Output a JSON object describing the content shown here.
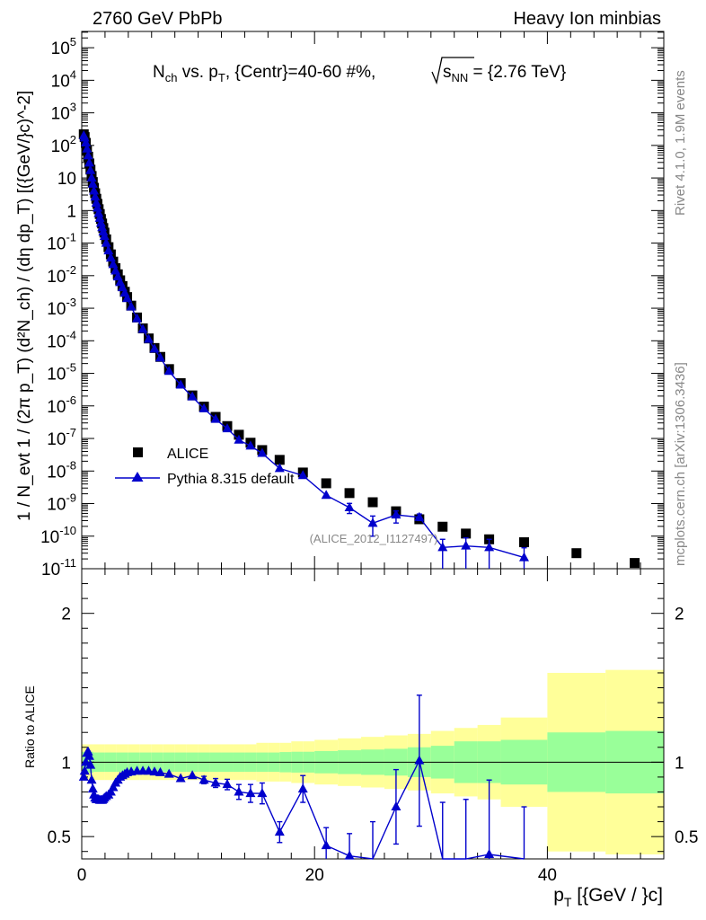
{
  "chart_data": {
    "type": "scatter",
    "header_left": "2760 GeV PbPb",
    "header_right": "Heavy Ion minbias",
    "title": "Nch vs. pT, {Centr}=40-60 #%, √sNN = {2.76 TeV}",
    "title_parts": {
      "n": "N",
      "ch": "ch",
      "vs": " vs. p",
      "t": "T",
      "centr": ", {Centr}=40-60 #%, ",
      "sqrt": "s",
      "nn": "NN",
      "energy": " = {2.76 TeV}"
    },
    "ylabel": "1 / Nevt 1 / (2π pT) (d²Nch) / (dη dpT) [({GeV/}c)^-2]",
    "ylabel_plain": "1 / N_evt  1 / (2π  p_T)  (d²N_ch) / (dη  dp_T)  [({GeV/}c)^-2]",
    "xlabel": "pT [{GeV / }c]",
    "xlabel_parts": {
      "p": "p",
      "t": "T",
      "unit": " [{GeV / }c]"
    },
    "ratio_ylabel": "Ratio to ALICE",
    "side_text_top": "Rivet 4.1.0,  1.9M events",
    "side_text_bottom": "mcplots.cern.ch [arXiv:1306.3436]",
    "watermark": "(ALICE_2012_I1127497)",
    "xlim": [
      0,
      50
    ],
    "ylim_log10": [
      -11,
      5.5
    ],
    "ratio_ylim": [
      0.35,
      2.3
    ],
    "y_tick_labels": [
      "10^5",
      "10^4",
      "10^3",
      "10^2",
      "10",
      "1",
      "10^-1",
      "10^-2",
      "10^-3",
      "10^-4",
      "10^-5",
      "10^-6",
      "10^-7",
      "10^-8",
      "10^-9",
      "10^-10",
      "10^-11"
    ],
    "x_tick_labels": [
      "0",
      "20",
      "40"
    ],
    "ratio_tick_labels": [
      "0.5",
      "1",
      "2"
    ],
    "legend": {
      "position": "middle-left",
      "entries": [
        "ALICE",
        "Pythia 8.315 default"
      ]
    },
    "series": [
      {
        "name": "ALICE",
        "color": "#000000",
        "marker": "square",
        "x": [
          0.175,
          0.25,
          0.35,
          0.45,
          0.55,
          0.65,
          0.75,
          0.85,
          0.95,
          1.05,
          1.15,
          1.25,
          1.35,
          1.45,
          1.55,
          1.65,
          1.75,
          1.85,
          1.95,
          2.1,
          2.3,
          2.5,
          2.7,
          2.9,
          3.1,
          3.3,
          3.5,
          3.7,
          3.9,
          4.25,
          4.75,
          5.25,
          5.75,
          6.25,
          6.75,
          7.5,
          8.5,
          9.5,
          10.5,
          11.5,
          12.5,
          13.5,
          14.5,
          15.5,
          17,
          19,
          21,
          23,
          25,
          27,
          29,
          31,
          33,
          35,
          38,
          42.5,
          47.5
        ],
        "y": [
          220,
          180,
          120,
          72,
          45,
          28,
          18,
          11.5,
          7.5,
          5,
          3.4,
          2.3,
          1.6,
          1.1,
          0.78,
          0.55,
          0.4,
          0.29,
          0.21,
          0.13,
          0.075,
          0.045,
          0.027,
          0.017,
          0.011,
          0.0072,
          0.0048,
          0.0032,
          0.0022,
          0.0012,
          0.00052,
          0.00024,
          0.000118,
          6e-05,
          3.2e-05,
          1.35e-05,
          5e-06,
          2.1e-06,
          9.5e-07,
          4.6e-07,
          2.4e-07,
          1.3e-07,
          7.4e-08,
          4.4e-08,
          2.2e-08,
          9e-09,
          4.2e-09,
          2.1e-09,
          1.1e-09,
          5.8e-10,
          3.3e-10,
          1.95e-10,
          1.2e-10,
          8e-11,
          6.5e-11,
          3e-11,
          1.5e-11
        ]
      },
      {
        "name": "Pythia 8.315 default",
        "color": "#0000cc",
        "marker": "triangle",
        "x": [
          0.175,
          0.25,
          0.35,
          0.45,
          0.55,
          0.65,
          0.75,
          0.85,
          0.95,
          1.05,
          1.15,
          1.25,
          1.35,
          1.45,
          1.55,
          1.65,
          1.75,
          1.85,
          1.95,
          2.1,
          2.3,
          2.5,
          2.7,
          2.9,
          3.1,
          3.3,
          3.5,
          3.7,
          3.9,
          4.25,
          4.75,
          5.25,
          5.75,
          6.25,
          6.75,
          7.5,
          8.5,
          9.5,
          10.5,
          11.5,
          12.5,
          13.5,
          14.5,
          15.5,
          17,
          19,
          21,
          23,
          25,
          27,
          29,
          31,
          33,
          35,
          38
        ],
        "y": [
          200,
          170,
          120,
          78,
          48,
          29,
          17,
          10,
          6.5,
          4,
          2.6,
          1.7,
          1.2,
          0.82,
          0.58,
          0.41,
          0.3,
          0.22,
          0.16,
          0.1,
          0.058,
          0.035,
          0.022,
          0.014,
          0.0092,
          0.0062,
          0.0043,
          0.0029,
          0.002,
          0.0011,
          0.00048,
          0.000225,
          0.000111,
          5.6e-05,
          3e-05,
          1.16e-05,
          4.4e-06,
          1.9e-06,
          8.2e-07,
          3.9e-07,
          2e-07,
          9e-08,
          5.9e-08,
          3.5e-08,
          1.2e-08,
          7.3e-09,
          1.8e-09,
          7.5e-10,
          2.5e-10,
          4.5e-10,
          3.8e-10,
          4.5e-11,
          5e-11,
          4.5e-11,
          2.2e-11
        ],
        "yerr_low_log10": [
          0,
          0,
          0,
          0,
          0,
          0,
          0,
          0,
          0,
          0,
          0,
          0,
          0,
          0,
          0,
          0,
          0,
          0,
          0,
          0,
          0,
          0,
          0,
          0,
          0,
          0,
          0,
          0,
          0,
          0,
          0,
          0,
          0,
          0,
          0,
          0,
          0,
          0,
          0,
          0,
          0,
          0,
          0,
          0,
          0,
          0,
          0,
          0.18,
          0.4,
          0.25,
          0.1,
          3,
          3,
          3,
          3
        ],
        "yerr_high_log10": [
          0,
          0,
          0,
          0,
          0,
          0,
          0,
          0,
          0,
          0,
          0,
          0,
          0,
          0,
          0,
          0,
          0,
          0,
          0,
          0,
          0,
          0,
          0,
          0,
          0,
          0,
          0,
          0,
          0,
          0,
          0,
          0,
          0,
          0,
          0,
          0,
          0,
          0,
          0,
          0,
          0,
          0,
          0,
          0,
          0,
          0,
          0,
          0.13,
          0.22,
          0.12,
          0.1,
          0.25,
          0.25,
          0.25,
          0.3
        ]
      }
    ],
    "ratio": {
      "reference_line": 1.0,
      "x": [
        0.175,
        0.25,
        0.35,
        0.45,
        0.55,
        0.65,
        0.75,
        0.85,
        0.95,
        1.05,
        1.15,
        1.25,
        1.35,
        1.45,
        1.55,
        1.65,
        1.75,
        1.85,
        1.95,
        2.1,
        2.3,
        2.5,
        2.7,
        2.9,
        3.1,
        3.3,
        3.5,
        3.7,
        3.9,
        4.25,
        4.75,
        5.25,
        5.75,
        6.25,
        6.75,
        7.5,
        8.5,
        9.5,
        10.5,
        11.5,
        12.5,
        13.5,
        14.5,
        15.5,
        17,
        19,
        21,
        23,
        25,
        27,
        29,
        31,
        33,
        35,
        38
      ],
      "y": [
        0.9,
        0.94,
        1.0,
        1.06,
        1.07,
        1.04,
        0.98,
        0.88,
        0.82,
        0.78,
        0.76,
        0.75,
        0.75,
        0.75,
        0.745,
        0.745,
        0.745,
        0.75,
        0.76,
        0.77,
        0.78,
        0.8,
        0.83,
        0.86,
        0.88,
        0.9,
        0.91,
        0.92,
        0.93,
        0.935,
        0.94,
        0.94,
        0.94,
        0.935,
        0.93,
        0.92,
        0.89,
        0.91,
        0.88,
        0.86,
        0.85,
        0.8,
        0.79,
        0.79,
        0.53,
        0.82,
        0.44,
        0.37,
        0.3,
        0.7,
        1.01,
        0.23,
        0.25,
        0.38,
        0.2
      ],
      "yerr": [
        0.01,
        0.01,
        0.01,
        0.01,
        0.01,
        0.01,
        0.01,
        0.01,
        0.01,
        0.01,
        0.01,
        0.01,
        0.01,
        0.01,
        0.01,
        0.01,
        0.01,
        0.01,
        0.01,
        0.01,
        0.01,
        0.01,
        0.01,
        0.01,
        0.01,
        0.01,
        0.01,
        0.01,
        0.01,
        0.01,
        0.01,
        0.01,
        0.01,
        0.01,
        0.01,
        0.01,
        0.015,
        0.02,
        0.025,
        0.03,
        0.035,
        0.05,
        0.06,
        0.07,
        0.07,
        0.09,
        0.12,
        0.15,
        0.3,
        0.25,
        0.44,
        0.5,
        0.5,
        0.5,
        0.5
      ],
      "band_edges": [
        0,
        1,
        2,
        3,
        4,
        5,
        6,
        7,
        8,
        9,
        10,
        11,
        12,
        13,
        14,
        15,
        16,
        17,
        18,
        19,
        20,
        22,
        24,
        26,
        28,
        30,
        32,
        34,
        36,
        40,
        45,
        50
      ],
      "yellow_half_width": [
        0.12,
        0.12,
        0.12,
        0.12,
        0.12,
        0.12,
        0.12,
        0.12,
        0.12,
        0.12,
        0.12,
        0.12,
        0.12,
        0.12,
        0.12,
        0.13,
        0.13,
        0.13,
        0.14,
        0.14,
        0.15,
        0.16,
        0.17,
        0.18,
        0.19,
        0.21,
        0.23,
        0.25,
        0.3,
        0.6,
        0.62
      ],
      "green_half_width": [
        0.07,
        0.065,
        0.065,
        0.065,
        0.065,
        0.065,
        0.065,
        0.065,
        0.065,
        0.065,
        0.065,
        0.065,
        0.065,
        0.065,
        0.065,
        0.065,
        0.065,
        0.068,
        0.07,
        0.07,
        0.075,
        0.08,
        0.085,
        0.09,
        0.1,
        0.11,
        0.14,
        0.14,
        0.15,
        0.2,
        0.21
      ]
    }
  }
}
